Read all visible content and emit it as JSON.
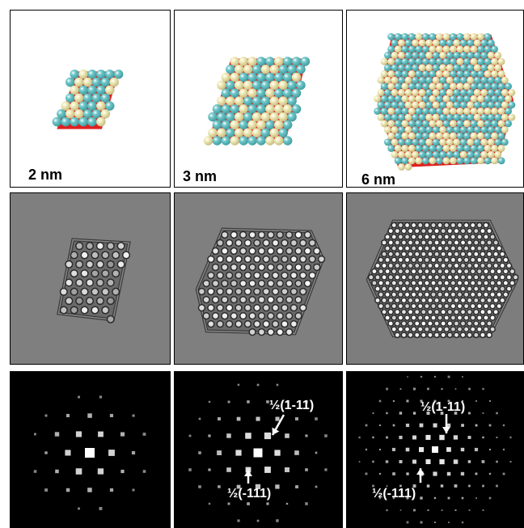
{
  "figure": {
    "rows": [
      {
        "name": "models",
        "panels": [
          {
            "size_label": "2 nm"
          },
          {
            "size_label": "3 nm"
          },
          {
            "size_label": "6 nm"
          }
        ]
      },
      {
        "name": "simulated-images"
      },
      {
        "name": "diffractograms",
        "panels": [
          {},
          {
            "reflection_a": "½(1-11)",
            "reflection_b": "½(-111)"
          },
          {
            "reflection_a": "½(1-11)",
            "reflection_b": "½(-111)"
          }
        ]
      }
    ],
    "colors": {
      "atom_cyan": "#6fc7c9",
      "atom_cream": "#f1ebb9",
      "bond_red": "#e02020",
      "sim_background": "#7f7f7f",
      "fft_background": "#000000"
    }
  }
}
